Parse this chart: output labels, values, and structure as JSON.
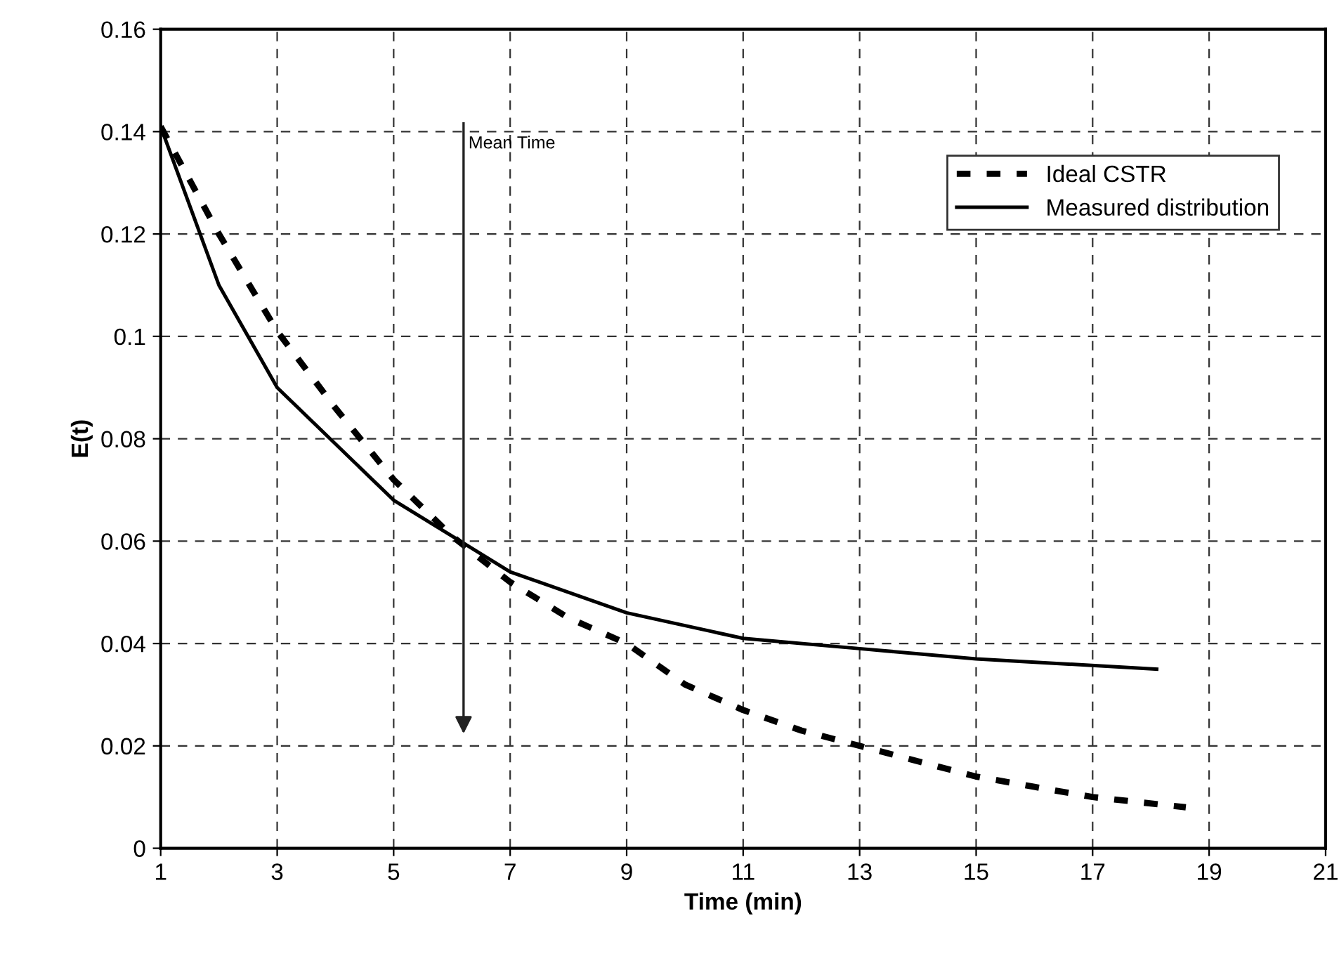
{
  "chart_data": {
    "type": "line",
    "xlabel": "Time (min)",
    "ylabel": "E(t)",
    "series": [
      {
        "name": "Ideal CSTR",
        "color": "#000000",
        "line_style": "dashed",
        "x": [
          1,
          2,
          3,
          4,
          5,
          6,
          7,
          8,
          9,
          10,
          11,
          12,
          13,
          14,
          15,
          16,
          17,
          18.6
        ],
        "values": [
          0.141,
          0.12,
          0.101,
          0.086,
          0.072,
          0.061,
          0.052,
          0.045,
          0.04,
          0.032,
          0.027,
          0.023,
          0.02,
          0.017,
          0.014,
          0.012,
          0.01,
          0.008
        ]
      },
      {
        "name": "Measured distribution",
        "color": "#000000",
        "line_style": "solid",
        "x": [
          1,
          2,
          3,
          5,
          7,
          9,
          11,
          13,
          15,
          18.1
        ],
        "values": [
          0.141,
          0.11,
          0.09,
          0.068,
          0.054,
          0.046,
          0.041,
          0.039,
          0.037,
          0.035
        ]
      }
    ],
    "ref_lines": [
      {
        "axis": "x",
        "value": 6.2,
        "label": "Mean Time",
        "color": "#222222"
      }
    ],
    "xlim": [
      1,
      21
    ],
    "xticks": [
      1,
      3,
      5,
      7,
      9,
      11,
      13,
      15,
      17,
      19,
      21
    ],
    "ylim": [
      0,
      0.16
    ],
    "yticks": [
      0,
      0.02,
      0.04,
      0.06,
      0.08,
      0.1,
      0.12,
      0.14,
      0.16
    ],
    "grid": true,
    "legend": "top right",
    "marker": "none"
  }
}
